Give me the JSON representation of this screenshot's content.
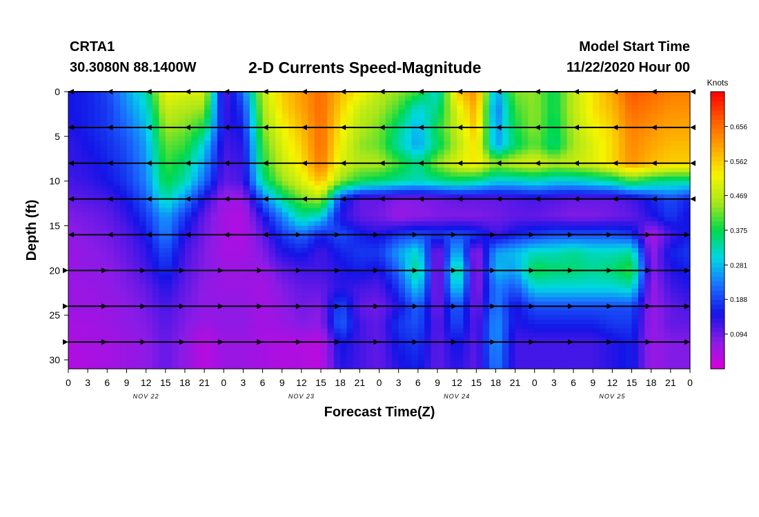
{
  "header": {
    "station": "CRTA1",
    "coordinates": "30.3080N 88.1400W",
    "title": "2-D Currents Speed-Magnitude",
    "start_label": "Model Start Time",
    "start_value": "11/22/2020 Hour 00"
  },
  "chart_data": {
    "type": "heatmap",
    "title": "2-D Currents Speed-Magnitude",
    "xlabel": "Forecast Time(Z)",
    "ylabel": "Depth (ft)",
    "x_hours_ticks": [
      0,
      3,
      6,
      9,
      12,
      15,
      18,
      21,
      0,
      3,
      6,
      9,
      12,
      15,
      18,
      21,
      0,
      3,
      6,
      9,
      12,
      15,
      18,
      21,
      0,
      3,
      6,
      9,
      12,
      15,
      18,
      21,
      0
    ],
    "x_day_labels": [
      "NOV 22",
      "NOV 23",
      "NOV 24",
      "NOV 25"
    ],
    "xlim_hours": [
      0,
      96
    ],
    "y_ticks": [
      0,
      5,
      10,
      15,
      20,
      25,
      30
    ],
    "ylim": [
      31,
      0
    ],
    "colorbar": {
      "label": "Knots",
      "ticks": [
        "0.656",
        "0.562",
        "0.469",
        "0.375",
        "0.281",
        "0.188",
        "0.094"
      ],
      "tick_values": [
        0.656,
        0.562,
        0.469,
        0.375,
        0.281,
        0.188,
        0.094
      ],
      "range": [
        0,
        0.75
      ],
      "colors": [
        "#d900d9",
        "#8a1be6",
        "#1414e6",
        "#1a6eff",
        "#00d7e6",
        "#00d84c",
        "#a8e61a",
        "#f5f500",
        "#ffa500",
        "#ff5a00",
        "#ff0000"
      ]
    },
    "speed_depths_ft": [
      0,
      2,
      4,
      6,
      8,
      10,
      12,
      14,
      16,
      18,
      20,
      22,
      24,
      26,
      28,
      31
    ],
    "speed_hours": [
      0,
      3,
      6,
      9,
      12,
      15,
      18,
      21,
      24,
      27,
      30,
      33,
      36,
      39,
      42,
      45,
      48,
      51,
      54,
      57,
      60,
      63,
      66,
      69,
      72,
      75,
      78,
      81,
      84,
      87,
      90,
      93,
      96
    ],
    "speed_grid_knots": [
      [
        0.15,
        0.16,
        0.19,
        0.26,
        0.33,
        0.52,
        0.5,
        0.5,
        0.1,
        0.22,
        0.47,
        0.56,
        0.61,
        0.66,
        0.58,
        0.53,
        0.47,
        0.44,
        0.4,
        0.3,
        0.56,
        0.63,
        0.25,
        0.43,
        0.44,
        0.37,
        0.47,
        0.54,
        0.6,
        0.68,
        0.66,
        0.64,
        0.64
      ],
      [
        0.15,
        0.16,
        0.18,
        0.24,
        0.3,
        0.48,
        0.46,
        0.44,
        0.12,
        0.18,
        0.45,
        0.55,
        0.6,
        0.66,
        0.56,
        0.48,
        0.45,
        0.4,
        0.3,
        0.35,
        0.5,
        0.6,
        0.22,
        0.4,
        0.44,
        0.37,
        0.47,
        0.54,
        0.58,
        0.66,
        0.64,
        0.62,
        0.62
      ],
      [
        0.14,
        0.16,
        0.18,
        0.22,
        0.28,
        0.45,
        0.43,
        0.38,
        0.13,
        0.16,
        0.43,
        0.52,
        0.58,
        0.66,
        0.54,
        0.46,
        0.43,
        0.35,
        0.27,
        0.38,
        0.48,
        0.58,
        0.24,
        0.38,
        0.44,
        0.36,
        0.46,
        0.52,
        0.56,
        0.64,
        0.62,
        0.6,
        0.6
      ],
      [
        0.13,
        0.15,
        0.17,
        0.2,
        0.26,
        0.42,
        0.4,
        0.3,
        0.12,
        0.14,
        0.4,
        0.5,
        0.56,
        0.66,
        0.52,
        0.44,
        0.42,
        0.33,
        0.26,
        0.36,
        0.46,
        0.55,
        0.25,
        0.36,
        0.42,
        0.35,
        0.45,
        0.5,
        0.55,
        0.63,
        0.6,
        0.58,
        0.58
      ],
      [
        0.13,
        0.14,
        0.16,
        0.19,
        0.25,
        0.4,
        0.36,
        0.26,
        0.11,
        0.13,
        0.38,
        0.48,
        0.54,
        0.65,
        0.5,
        0.46,
        0.46,
        0.4,
        0.34,
        0.44,
        0.5,
        0.54,
        0.44,
        0.48,
        0.5,
        0.46,
        0.48,
        0.5,
        0.55,
        0.62,
        0.58,
        0.56,
        0.56
      ],
      [
        0.12,
        0.13,
        0.15,
        0.18,
        0.24,
        0.38,
        0.33,
        0.22,
        0.1,
        0.12,
        0.34,
        0.44,
        0.5,
        0.58,
        0.44,
        0.38,
        0.36,
        0.34,
        0.32,
        0.34,
        0.36,
        0.34,
        0.3,
        0.3,
        0.32,
        0.3,
        0.3,
        0.32,
        0.34,
        0.4,
        0.36,
        0.34,
        0.34
      ],
      [
        0.1,
        0.11,
        0.12,
        0.15,
        0.21,
        0.33,
        0.25,
        0.14,
        0.06,
        0.06,
        0.22,
        0.34,
        0.42,
        0.46,
        0.18,
        0.1,
        0.1,
        0.08,
        0.08,
        0.09,
        0.1,
        0.1,
        0.1,
        0.11,
        0.12,
        0.11,
        0.1,
        0.1,
        0.1,
        0.12,
        0.16,
        0.2,
        0.16
      ],
      [
        0.08,
        0.09,
        0.1,
        0.13,
        0.18,
        0.26,
        0.18,
        0.1,
        0.05,
        0.04,
        0.14,
        0.24,
        0.34,
        0.3,
        0.14,
        0.1,
        0.09,
        0.06,
        0.07,
        0.08,
        0.08,
        0.08,
        0.09,
        0.1,
        0.1,
        0.09,
        0.08,
        0.08,
        0.09,
        0.1,
        0.14,
        0.18,
        0.14
      ],
      [
        0.07,
        0.08,
        0.09,
        0.11,
        0.15,
        0.24,
        0.14,
        0.09,
        0.05,
        0.04,
        0.1,
        0.18,
        0.22,
        0.16,
        0.2,
        0.16,
        0.14,
        0.18,
        0.2,
        0.18,
        0.2,
        0.18,
        0.12,
        0.16,
        0.18,
        0.2,
        0.2,
        0.2,
        0.2,
        0.18,
        0.04,
        0.12,
        0.16
      ],
      [
        0.06,
        0.07,
        0.08,
        0.1,
        0.13,
        0.2,
        0.12,
        0.08,
        0.05,
        0.05,
        0.08,
        0.14,
        0.16,
        0.12,
        0.16,
        0.18,
        0.18,
        0.26,
        0.32,
        0.06,
        0.3,
        0.05,
        0.26,
        0.28,
        0.32,
        0.32,
        0.34,
        0.32,
        0.32,
        0.34,
        0.06,
        0.16,
        0.18
      ],
      [
        0.06,
        0.07,
        0.07,
        0.09,
        0.12,
        0.17,
        0.11,
        0.08,
        0.06,
        0.06,
        0.06,
        0.1,
        0.12,
        0.12,
        0.14,
        0.16,
        0.14,
        0.22,
        0.36,
        0.05,
        0.38,
        0.05,
        0.28,
        0.26,
        0.38,
        0.36,
        0.36,
        0.34,
        0.36,
        0.4,
        0.07,
        0.14,
        0.16
      ],
      [
        0.06,
        0.06,
        0.07,
        0.08,
        0.1,
        0.14,
        0.1,
        0.07,
        0.06,
        0.06,
        0.05,
        0.08,
        0.1,
        0.1,
        0.14,
        0.12,
        0.11,
        0.18,
        0.3,
        0.06,
        0.32,
        0.06,
        0.24,
        0.2,
        0.3,
        0.3,
        0.3,
        0.3,
        0.3,
        0.32,
        0.06,
        0.12,
        0.14
      ],
      [
        0.06,
        0.06,
        0.06,
        0.07,
        0.09,
        0.12,
        0.09,
        0.07,
        0.07,
        0.07,
        0.05,
        0.07,
        0.09,
        0.08,
        0.2,
        0.1,
        0.09,
        0.14,
        0.22,
        0.08,
        0.22,
        0.08,
        0.24,
        0.14,
        0.2,
        0.2,
        0.2,
        0.2,
        0.2,
        0.2,
        0.06,
        0.1,
        0.12
      ],
      [
        0.05,
        0.05,
        0.06,
        0.07,
        0.08,
        0.11,
        0.08,
        0.06,
        0.07,
        0.07,
        0.05,
        0.06,
        0.08,
        0.07,
        0.22,
        0.12,
        0.1,
        0.18,
        0.2,
        0.1,
        0.2,
        0.1,
        0.26,
        0.14,
        0.16,
        0.16,
        0.16,
        0.16,
        0.18,
        0.18,
        0.06,
        0.1,
        0.1
      ],
      [
        0.04,
        0.05,
        0.05,
        0.06,
        0.07,
        0.1,
        0.07,
        0.03,
        0.06,
        0.06,
        0.05,
        0.04,
        0.04,
        0.03,
        0.16,
        0.12,
        0.1,
        0.16,
        0.18,
        0.1,
        0.16,
        0.1,
        0.26,
        0.12,
        0.12,
        0.12,
        0.12,
        0.12,
        0.14,
        0.16,
        0.06,
        0.08,
        0.08
      ],
      [
        0.04,
        0.04,
        0.05,
        0.06,
        0.07,
        0.1,
        0.07,
        0.03,
        0.06,
        0.06,
        0.05,
        0.04,
        0.04,
        0.03,
        0.14,
        0.12,
        0.1,
        0.14,
        0.16,
        0.1,
        0.14,
        0.1,
        0.24,
        0.12,
        0.12,
        0.12,
        0.12,
        0.12,
        0.14,
        0.16,
        0.06,
        0.08,
        0.08
      ]
    ],
    "vector_depths_ft": [
      0,
      4,
      8,
      12,
      16,
      20,
      24,
      28
    ]
  }
}
